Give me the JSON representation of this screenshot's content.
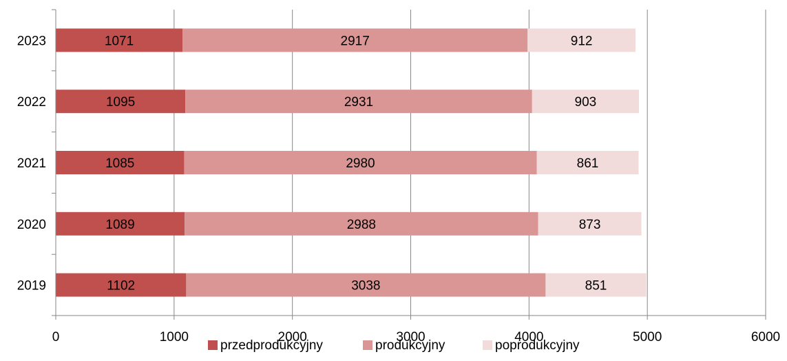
{
  "chart_data": {
    "type": "bar",
    "orientation": "horizontal",
    "stacked": true,
    "title": "",
    "xlabel": "",
    "ylabel": "",
    "categories": [
      "2019",
      "2020",
      "2021",
      "2022",
      "2023"
    ],
    "series": [
      {
        "name": "przedprodukcyjny",
        "color": "#c0504d",
        "values": [
          1102,
          1089,
          1085,
          1095,
          1071
        ]
      },
      {
        "name": "produkcyjny",
        "color": "#d99694",
        "values": [
          3038,
          2988,
          2980,
          2931,
          2917
        ]
      },
      {
        "name": "poprodukcyjny",
        "color": "#f2dcdb",
        "values": [
          851,
          873,
          861,
          903,
          912
        ]
      }
    ],
    "xlim": [
      0,
      6000
    ],
    "xticks": [
      "0",
      "1000",
      "2000",
      "3000",
      "4000",
      "5000",
      "6000"
    ],
    "grid": true,
    "legend_position": "bottom",
    "data_labels": true
  }
}
